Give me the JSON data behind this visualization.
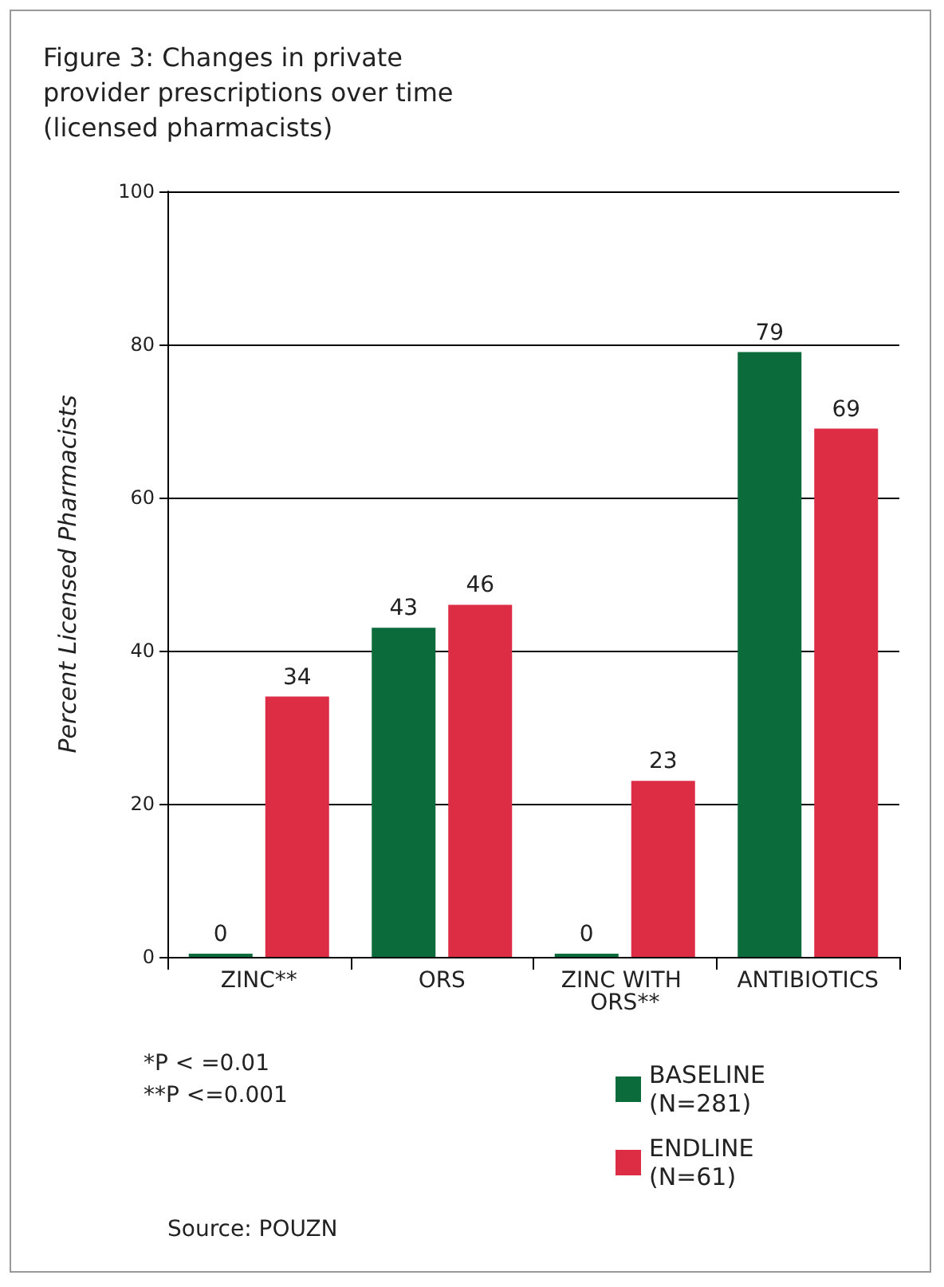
{
  "chart_data": {
    "type": "bar",
    "title": "Figure 3: Changes in private provider prescriptions over time (licensed pharmacists)",
    "ylabel": "Percent Licensed Pharmacists",
    "categories": [
      "ZINC**",
      "ORS",
      "ZINC WITH ORS**",
      "ANTIBIOTICS"
    ],
    "series": [
      {
        "name": "BASELINE (N=281)",
        "color": "#0b6b3a",
        "values": [
          0,
          43,
          0,
          79
        ]
      },
      {
        "name": "ENDLINE (N=61)",
        "color": "#dc2d45",
        "values": [
          34,
          46,
          23,
          69
        ]
      }
    ],
    "ylim": [
      0,
      100
    ],
    "yticks": [
      0,
      20,
      40,
      60,
      80,
      100
    ],
    "grid": "y",
    "legend": "bottom right",
    "data_labels": true,
    "annotations": [
      "*P < =0.01",
      "**P <=0.001",
      "Source: POUZN"
    ]
  }
}
